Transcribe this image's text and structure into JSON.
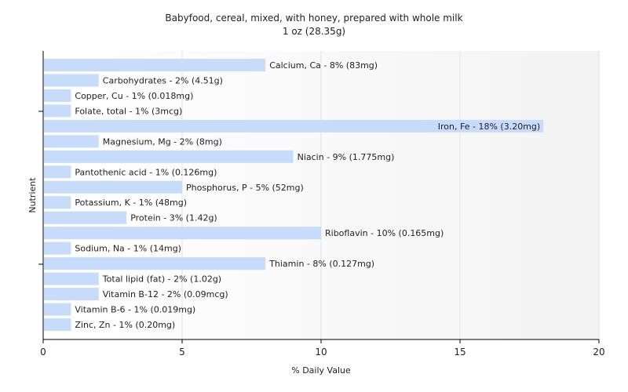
{
  "chart_data": {
    "type": "bar",
    "orientation": "horizontal",
    "title": "Babyfood, cereal, mixed, with honey, prepared with whole milk",
    "subtitle": "1 oz (28.35g)",
    "xlabel": "% Daily Value",
    "ylabel": "Nutrient",
    "xlim": [
      0,
      20
    ],
    "xticks": [
      "0",
      "5",
      "10",
      "15",
      "20"
    ],
    "grid": true,
    "bar_color": "#c6dcfa",
    "categories": [
      "Calcium, Ca",
      "Carbohydrates",
      "Copper, Cu",
      "Folate, total",
      "Iron, Fe",
      "Magnesium, Mg",
      "Niacin",
      "Pantothenic acid",
      "Phosphorus, P",
      "Potassium, K",
      "Protein",
      "Riboflavin",
      "Sodium, Na",
      "Thiamin",
      "Total lipid (fat)",
      "Vitamin B-12",
      "Vitamin B-6",
      "Zinc, Zn"
    ],
    "values": [
      8,
      2,
      1,
      1,
      18,
      2,
      9,
      1,
      5,
      1,
      3,
      10,
      1,
      8,
      2,
      2,
      1,
      1
    ],
    "labels": [
      "Calcium, Ca - 8% (83mg)",
      "Carbohydrates - 2% (4.51g)",
      "Copper, Cu - 1% (0.018mg)",
      "Folate, total - 1% (3mcg)",
      "Iron, Fe - 18% (3.20mg)",
      "Magnesium, Mg - 2% (8mg)",
      "Niacin - 9% (1.775mg)",
      "Pantothenic acid - 1% (0.126mg)",
      "Phosphorus, P - 5% (52mg)",
      "Potassium, K - 1% (48mg)",
      "Protein - 3% (1.42g)",
      "Riboflavin - 10% (0.165mg)",
      "Sodium, Na - 1% (14mg)",
      "Thiamin - 8% (0.127mg)",
      "Total lipid (fat) - 2% (1.02g)",
      "Vitamin B-12 - 2% (0.09mcg)",
      "Vitamin B-6 - 1% (0.019mg)",
      "Zinc, Zn - 1% (0.20mg)"
    ]
  }
}
